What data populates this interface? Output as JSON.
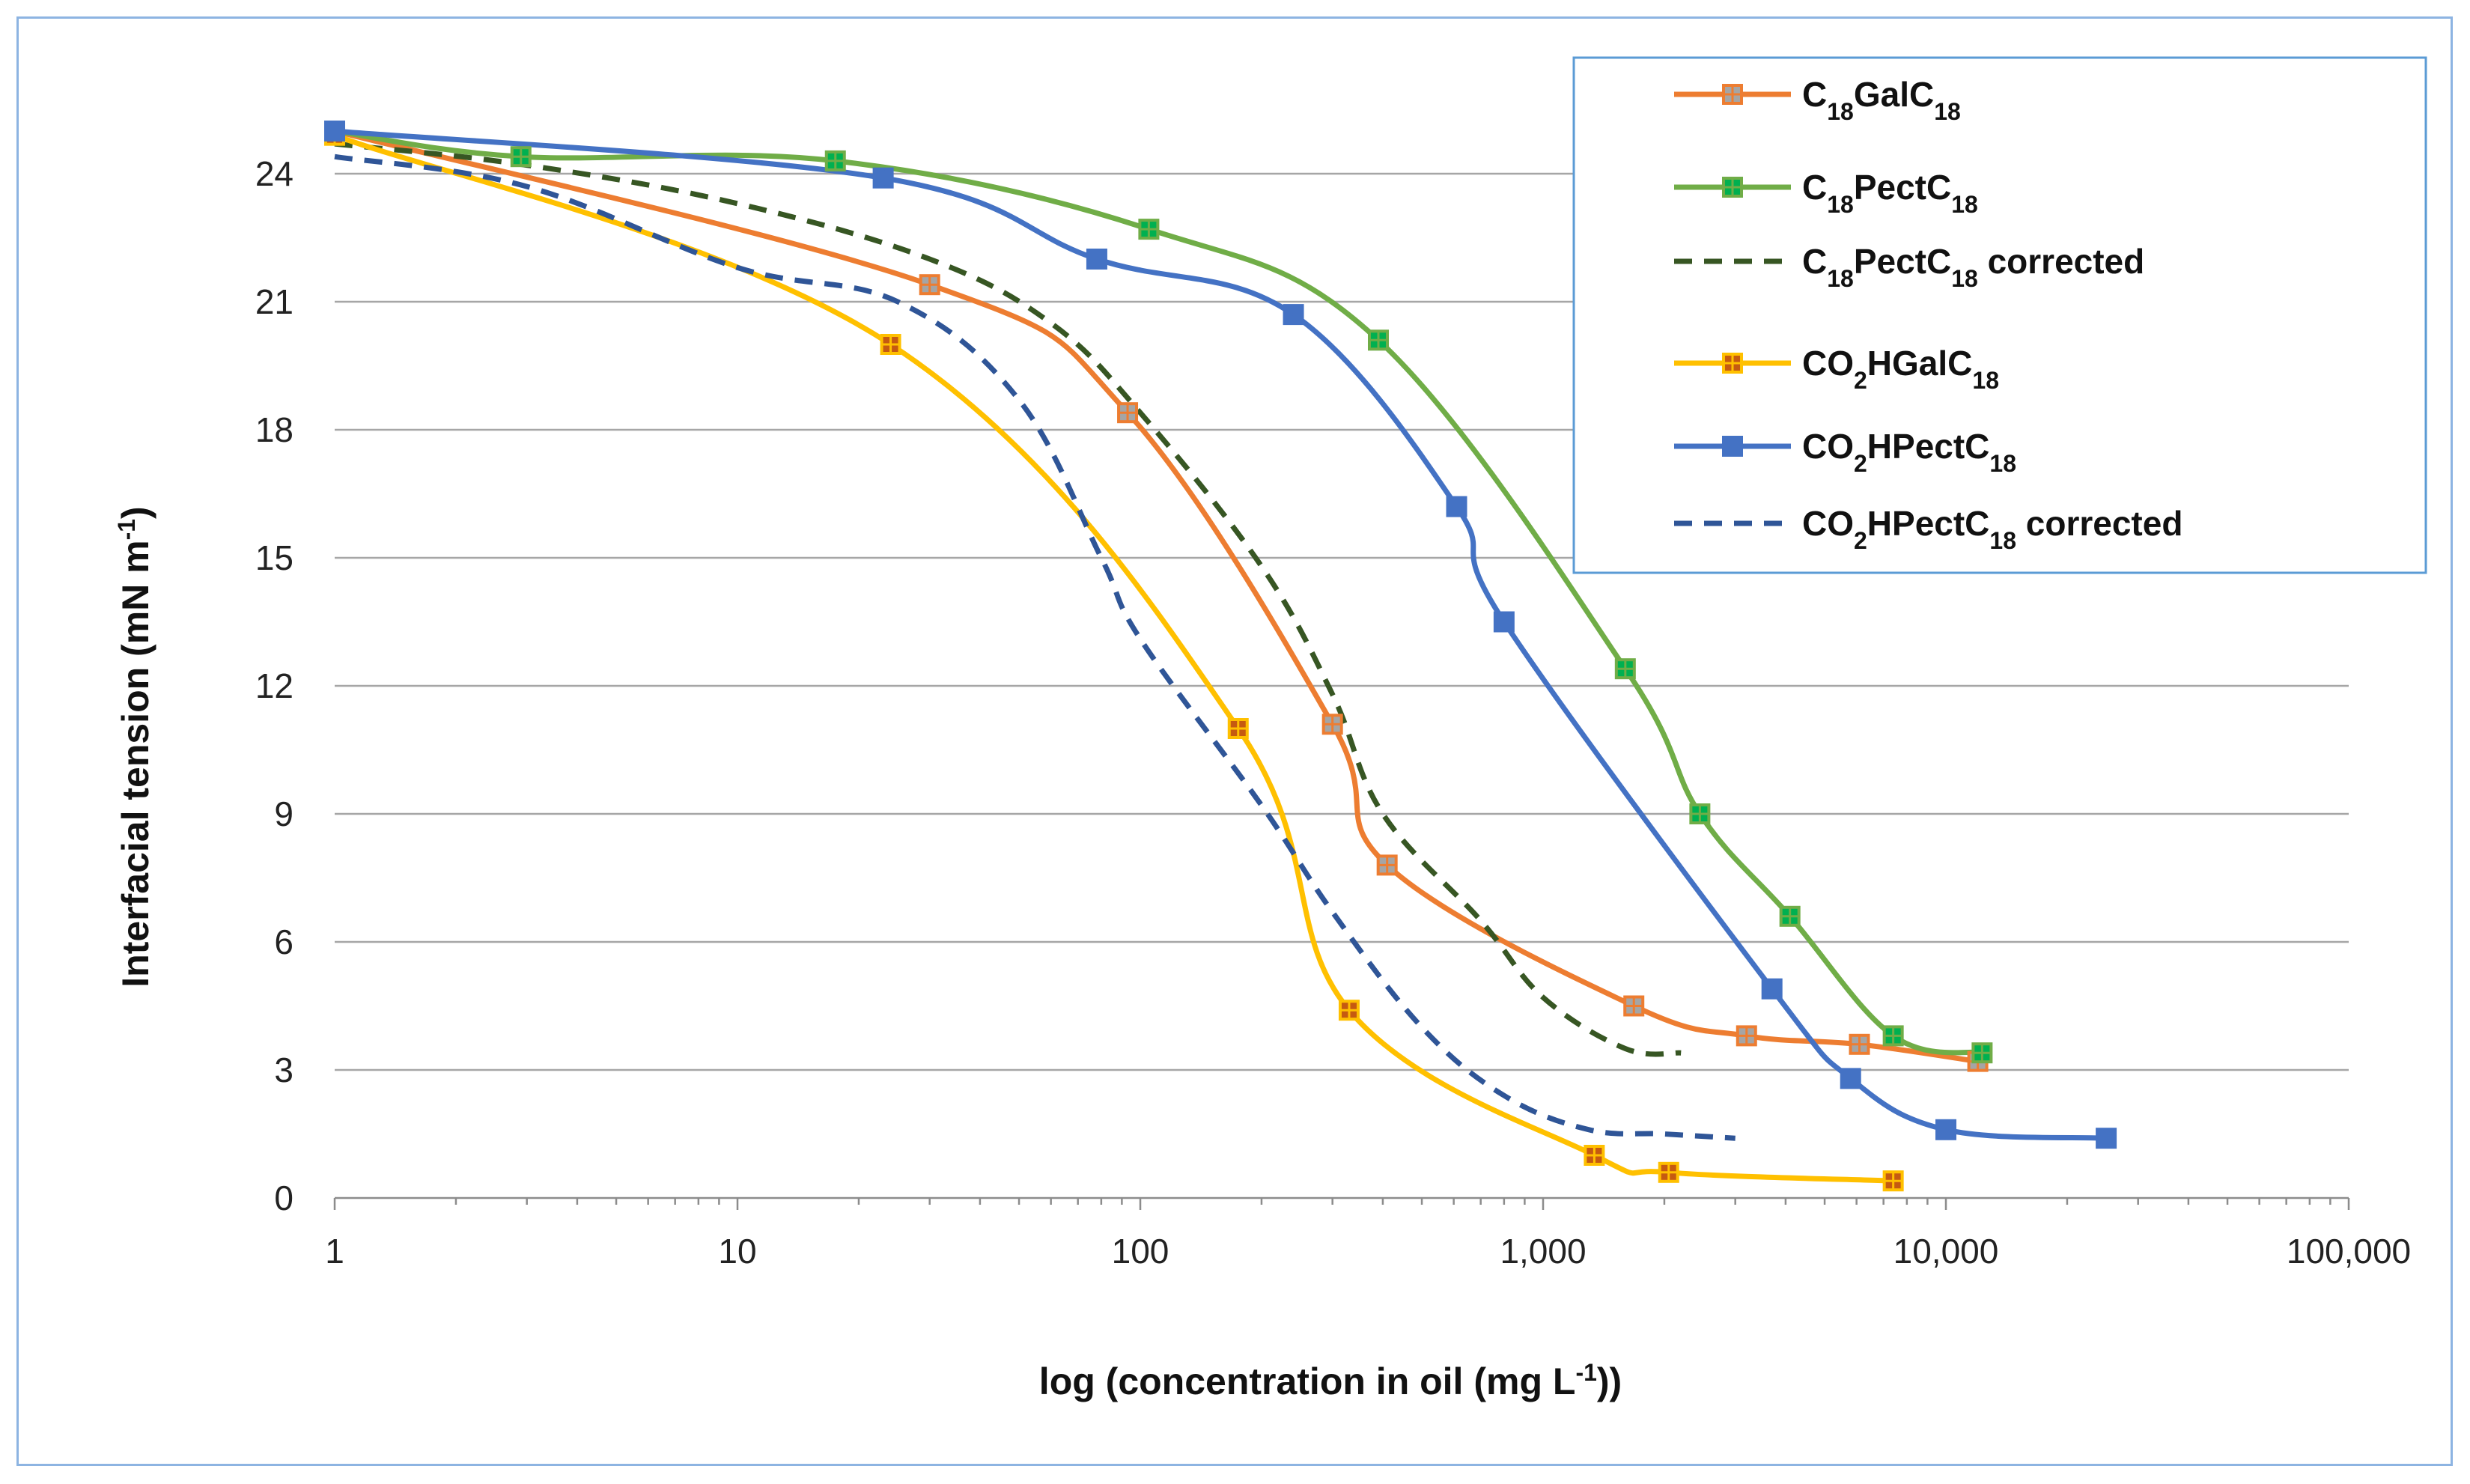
{
  "chart_data": {
    "type": "line",
    "title": "",
    "xlabel_parts": [
      "log (concentration in oil (mg L",
      "-1",
      "))"
    ],
    "ylabel_parts": [
      "Interfacial tension (mN m",
      "-1",
      ")"
    ],
    "xscale": "log",
    "xlim": [
      1,
      100000
    ],
    "ylim": [
      0,
      25
    ],
    "x_ticks": [
      1,
      10,
      100,
      1000,
      10000,
      100000
    ],
    "x_tick_labels": [
      "1",
      "10",
      "100",
      "1,000",
      "10,000",
      "100,000"
    ],
    "y_ticks": [
      0,
      3,
      6,
      9,
      12,
      15,
      18,
      21,
      24
    ],
    "y_tick_labels": [
      "0",
      "3",
      "6",
      "9",
      "12",
      "15",
      "18",
      "21",
      "24"
    ],
    "grid": "horizontal",
    "legend_position": "top-right",
    "series": [
      {
        "name_parts": [
          [
            "C",
            "n"
          ],
          [
            "18",
            "sub"
          ],
          [
            "GalC",
            "n"
          ],
          [
            "18",
            "sub"
          ]
        ],
        "color": "#ed7d31",
        "marker_fill": "#a5a5a5",
        "dash": false,
        "marker": true,
        "x": [
          1,
          30,
          93,
          300,
          410,
          1680,
          3200,
          6100,
          12000
        ],
        "y": [
          25.0,
          21.4,
          18.4,
          11.1,
          7.8,
          4.5,
          3.8,
          3.6,
          3.2
        ]
      },
      {
        "name_parts": [
          [
            "C",
            "n"
          ],
          [
            "18",
            "sub"
          ],
          [
            "PectC",
            "n"
          ],
          [
            "18",
            "sub"
          ]
        ],
        "color": "#70ad47",
        "marker_fill": "#00b050",
        "dash": false,
        "marker": true,
        "x": [
          1,
          2.9,
          17.5,
          105,
          390,
          1600,
          2450,
          4100,
          7400,
          12300
        ],
        "y": [
          25.0,
          24.4,
          24.3,
          22.7,
          20.1,
          12.4,
          9.0,
          6.6,
          3.8,
          3.4
        ]
      },
      {
        "name_parts": [
          [
            "C",
            "n"
          ],
          [
            "18",
            "sub"
          ],
          [
            "PectC",
            "n"
          ],
          [
            "18",
            "sub"
          ],
          [
            " corrected",
            "n"
          ]
        ],
        "color": "#375623",
        "dash": true,
        "marker": false,
        "x": [
          1,
          3,
          10,
          30,
          60,
          100,
          200,
          300,
          400,
          700,
          1000,
          1600,
          2200
        ],
        "y": [
          24.7,
          24.2,
          23.3,
          22.0,
          20.5,
          18.4,
          14.8,
          11.8,
          9.0,
          6.5,
          4.7,
          3.5,
          3.4
        ]
      },
      {
        "name_parts": [
          [
            "CO",
            "n"
          ],
          [
            "2",
            "sub"
          ],
          [
            "HGalC",
            "n"
          ],
          [
            "18",
            "sub"
          ]
        ],
        "color": "#ffc000",
        "marker_fill": "#c55a11",
        "dash": false,
        "marker": true,
        "x": [
          1,
          24,
          175,
          330,
          1340,
          2050,
          7400
        ],
        "y": [
          24.9,
          20.0,
          11.0,
          4.4,
          1.0,
          0.6,
          0.4
        ]
      },
      {
        "name_parts": [
          [
            "CO",
            "n"
          ],
          [
            "2",
            "sub"
          ],
          [
            "HPectC",
            "n"
          ],
          [
            "18",
            "sub"
          ]
        ],
        "color": "#4472c4",
        "marker_fill": "#4472c4",
        "dash": false,
        "marker": true,
        "x": [
          1,
          23,
          78,
          240,
          610,
          800,
          3700,
          5800,
          10000,
          25000
        ],
        "y": [
          25.0,
          23.9,
          22.0,
          20.7,
          16.2,
          13.5,
          4.9,
          2.8,
          1.6,
          1.4
        ]
      },
      {
        "name_parts": [
          [
            "CO",
            "n"
          ],
          [
            "2",
            "sub"
          ],
          [
            "HPectC",
            "n"
          ],
          [
            "18",
            "sub"
          ],
          [
            " corrected",
            "n"
          ]
        ],
        "color": "#2f5597",
        "dash": true,
        "marker": false,
        "x": [
          1,
          3,
          10,
          25,
          50,
          80,
          100,
          200,
          300,
          500,
          800,
          1300,
          2000,
          3000
        ],
        "y": [
          24.4,
          23.7,
          21.8,
          21.0,
          18.7,
          15.0,
          13.1,
          9.2,
          6.7,
          4.0,
          2.4,
          1.6,
          1.5,
          1.4
        ]
      }
    ]
  }
}
